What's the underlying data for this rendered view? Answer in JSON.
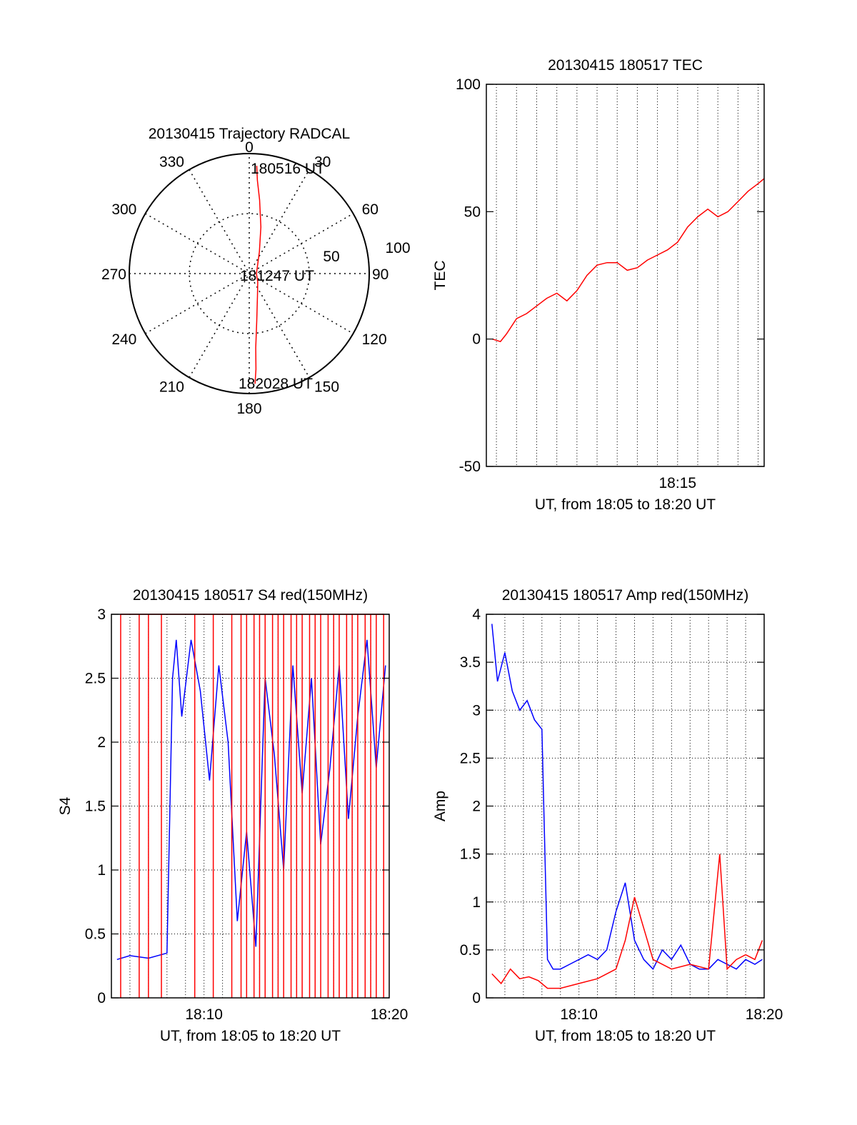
{
  "chart_data": [
    {
      "type": "polar",
      "title": "20130415 Trajectory RADCAL",
      "azimuth_labels": [
        "0",
        "30",
        "60",
        "90",
        "120",
        "150",
        "180",
        "210",
        "240",
        "270",
        "300",
        "330"
      ],
      "radial_labels": [
        "50",
        "100"
      ],
      "annotations": [
        "180516 UT",
        "181247 UT",
        "182028 UT"
      ],
      "series": [
        {
          "color": "#ff0000",
          "points": [
            {
              "az": 4,
              "r": 90
            },
            {
              "az": 5,
              "r": 78
            },
            {
              "az": 8,
              "r": 62
            },
            {
              "az": 14,
              "r": 40
            },
            {
              "az": 25,
              "r": 20
            },
            {
              "az": 90,
              "r": 6
            },
            {
              "az": 135,
              "r": 10
            },
            {
              "az": 160,
              "r": 20
            },
            {
              "az": 171,
              "r": 40
            },
            {
              "az": 175,
              "r": 62
            },
            {
              "az": 176,
              "r": 80
            },
            {
              "az": 177,
              "r": 92
            }
          ]
        }
      ]
    },
    {
      "type": "line",
      "title": "20130415 180517 TEC",
      "xlabel": "UT, from 18:05 to 18:20 UT",
      "ylabel": "TEC",
      "xlim": [
        5.5,
        19.3
      ],
      "ylim": [
        -50,
        100
      ],
      "xticks": [
        {
          "value": 15,
          "label": "18:15"
        }
      ],
      "yticks": [
        -50,
        0,
        50,
        100
      ],
      "grid": true,
      "series": [
        {
          "color": "#ff0000",
          "x": [
            5.8,
            6.2,
            6.5,
            7.0,
            7.5,
            8.0,
            8.5,
            9.0,
            9.5,
            10.0,
            10.5,
            11.0,
            11.5,
            12.0,
            12.5,
            13.0,
            13.5,
            14.0,
            14.5,
            15.0,
            15.5,
            16.0,
            16.5,
            17.0,
            17.5,
            18.0,
            18.5,
            19.0,
            19.3
          ],
          "y": [
            0,
            -1,
            2,
            8,
            10,
            13,
            16,
            18,
            15,
            19,
            25,
            29,
            30,
            30,
            27,
            28,
            31,
            33,
            35,
            38,
            44,
            48,
            51,
            48,
            50,
            54,
            58,
            61,
            63
          ]
        }
      ]
    },
    {
      "type": "line",
      "title": "20130415 180517 S4 red(150MHz)",
      "xlabel": "UT, from 18:05 to 18:20 UT",
      "ylabel": "S4",
      "xlim": [
        5.0,
        20.0
      ],
      "ylim": [
        0,
        3
      ],
      "xticks": [
        {
          "value": 10,
          "label": "18:10"
        },
        {
          "value": 20,
          "label": "18:20"
        }
      ],
      "yticks": [
        0,
        0.5,
        1,
        1.5,
        2,
        2.5,
        3
      ],
      "grid": true,
      "series": [
        {
          "color": "#0000ff",
          "x": [
            5.3,
            6.0,
            7.0,
            8.0,
            8.3,
            8.5,
            8.8,
            9.3,
            9.8,
            10.3,
            10.8,
            11.3,
            11.8,
            12.3,
            12.8,
            13.3,
            13.8,
            14.3,
            14.8,
            15.3,
            15.8,
            16.3,
            16.8,
            17.3,
            17.8,
            18.3,
            18.8,
            19.3,
            19.8
          ],
          "y": [
            0.3,
            0.33,
            0.31,
            0.35,
            2.5,
            2.8,
            2.2,
            2.8,
            2.4,
            1.7,
            2.6,
            2.0,
            0.6,
            1.3,
            0.4,
            2.5,
            1.9,
            1.0,
            2.6,
            1.6,
            2.5,
            1.2,
            1.8,
            2.6,
            1.4,
            2.2,
            2.8,
            1.8,
            2.6
          ]
        },
        {
          "color": "#ff0000",
          "x": [
            5.5,
            6.5,
            7.0,
            7.7,
            9.5,
            10.5,
            11.5,
            12.0,
            12.3,
            12.7,
            13.0,
            13.3,
            13.7,
            14.0,
            14.3,
            14.7,
            15.0,
            15.3,
            15.7,
            16.0,
            16.3,
            16.7,
            17.0,
            17.3,
            17.7,
            18.0,
            18.3,
            18.7,
            19.0,
            19.3,
            19.7
          ],
          "y": [
            3,
            3,
            3,
            3,
            3,
            3,
            3,
            3,
            3,
            3,
            3,
            3,
            3,
            3,
            3,
            3,
            3,
            3,
            3,
            3,
            3,
            3,
            3,
            3,
            3,
            3,
            3,
            3,
            3,
            3,
            3
          ]
        }
      ]
    },
    {
      "type": "line",
      "title": "20130415 180517 Amp red(150MHz)",
      "xlabel": "UT, from 18:05 to 18:20 UT",
      "ylabel": "Amp",
      "xlim": [
        5.0,
        20.0
      ],
      "ylim": [
        0,
        4
      ],
      "xticks": [
        {
          "value": 10,
          "label": "18:10"
        },
        {
          "value": 20,
          "label": "18:20"
        }
      ],
      "yticks": [
        0,
        0.5,
        1,
        1.5,
        2,
        2.5,
        3,
        3.5,
        4
      ],
      "grid": true,
      "series": [
        {
          "color": "#0000ff",
          "x": [
            5.3,
            5.6,
            6.0,
            6.4,
            6.8,
            7.2,
            7.6,
            8.0,
            8.3,
            8.6,
            9.0,
            9.5,
            10.0,
            10.5,
            11.0,
            11.5,
            12.0,
            12.5,
            13.0,
            13.5,
            14.0,
            14.5,
            15.0,
            15.5,
            16.0,
            16.5,
            17.0,
            17.5,
            18.0,
            18.5,
            19.0,
            19.5,
            19.9
          ],
          "y": [
            3.9,
            3.3,
            3.6,
            3.2,
            3.0,
            3.1,
            2.9,
            2.8,
            0.4,
            0.3,
            0.3,
            0.35,
            0.4,
            0.45,
            0.4,
            0.5,
            0.9,
            1.2,
            0.6,
            0.4,
            0.3,
            0.5,
            0.4,
            0.55,
            0.35,
            0.3,
            0.3,
            0.4,
            0.35,
            0.3,
            0.4,
            0.35,
            0.4
          ]
        },
        {
          "color": "#ff0000",
          "x": [
            5.3,
            5.8,
            6.3,
            6.8,
            7.3,
            7.8,
            8.3,
            9.0,
            10.0,
            11.0,
            12.0,
            12.5,
            13.0,
            14.0,
            15.0,
            16.0,
            17.0,
            17.6,
            18.0,
            18.5,
            19.0,
            19.5,
            19.9
          ],
          "y": [
            0.25,
            0.15,
            0.3,
            0.2,
            0.22,
            0.18,
            0.1,
            0.1,
            0.15,
            0.2,
            0.3,
            0.6,
            1.05,
            0.4,
            0.3,
            0.35,
            0.3,
            1.5,
            0.3,
            0.4,
            0.45,
            0.4,
            0.6
          ]
        }
      ]
    }
  ]
}
